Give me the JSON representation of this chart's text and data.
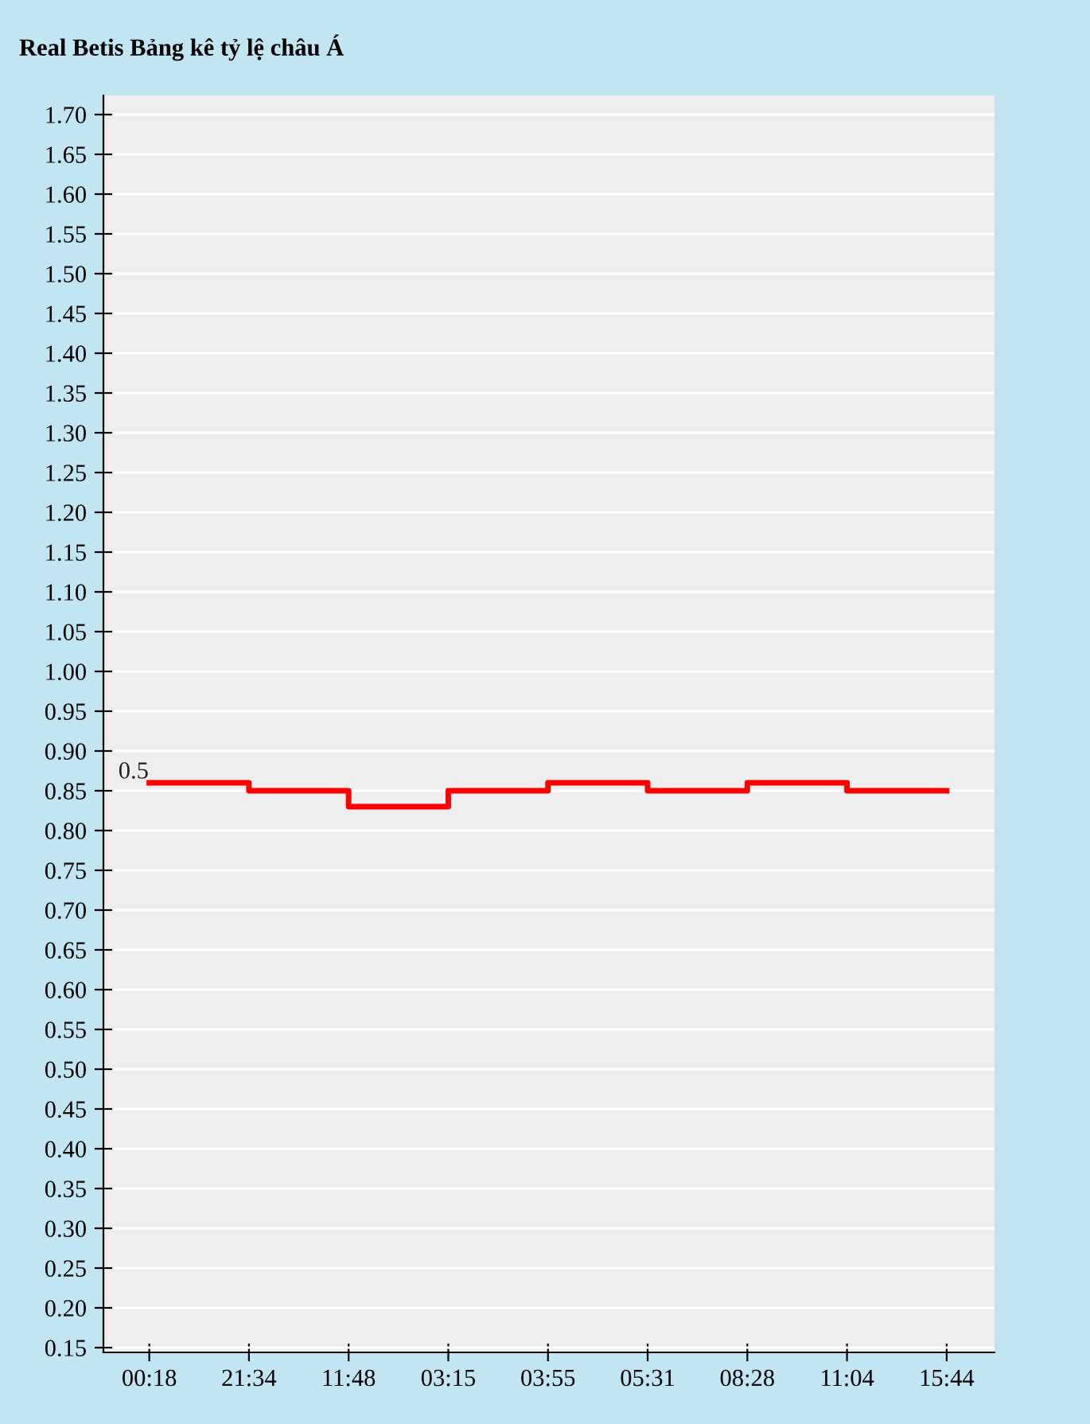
{
  "chart_data": {
    "type": "step",
    "title": "Real Betis Bảng kê tỷ lệ châu Á",
    "categories": [
      "00:18",
      "21:34",
      "11:48",
      "03:15",
      "03:55",
      "05:31",
      "08:28",
      "11:04",
      "15:44"
    ],
    "series": [
      {
        "color": "#ff0000",
        "values": [
          0.86,
          0.85,
          0.83,
          0.85,
          0.86,
          0.85,
          0.86,
          0.85,
          0.85
        ]
      }
    ],
    "ylim": [
      0.144,
      1.724
    ],
    "yticks": [
      {
        "value": 0.15,
        "label": "0.15"
      },
      {
        "value": 0.2,
        "label": "0.20"
      },
      {
        "value": 0.25,
        "label": "0.25"
      },
      {
        "value": 0.3,
        "label": "0.30"
      },
      {
        "value": 0.35,
        "label": "0.35"
      },
      {
        "value": 0.4,
        "label": "0.40"
      },
      {
        "value": 0.45,
        "label": "0.45"
      },
      {
        "value": 0.5,
        "label": "0.50"
      },
      {
        "value": 0.55,
        "label": "0.55"
      },
      {
        "value": 0.6,
        "label": "0.60"
      },
      {
        "value": 0.65,
        "label": "0.65"
      },
      {
        "value": 0.7,
        "label": "0.70"
      },
      {
        "value": 0.75,
        "label": "0.75"
      },
      {
        "value": 0.8,
        "label": "0.80"
      },
      {
        "value": 0.85,
        "label": "0.85"
      },
      {
        "value": 0.9,
        "label": "0.90"
      },
      {
        "value": 0.95,
        "label": "0.95"
      },
      {
        "value": 1.0,
        "label": "1.00"
      },
      {
        "value": 1.05,
        "label": "1.05"
      },
      {
        "value": 1.1,
        "label": "1.10"
      },
      {
        "value": 1.15,
        "label": "1.15"
      },
      {
        "value": 1.2,
        "label": "1.20"
      },
      {
        "value": 1.25,
        "label": "1.25"
      },
      {
        "value": 1.3,
        "label": "1.30"
      },
      {
        "value": 1.35,
        "label": "1.35"
      },
      {
        "value": 1.4,
        "label": "1.40"
      },
      {
        "value": 1.45,
        "label": "1.45"
      },
      {
        "value": 1.5,
        "label": "1.50"
      },
      {
        "value": 1.55,
        "label": "1.55"
      },
      {
        "value": 1.6,
        "label": "1.60"
      },
      {
        "value": 1.65,
        "label": "1.65"
      },
      {
        "value": 1.7,
        "label": "1.70"
      }
    ],
    "grid": "y",
    "annotations": [
      {
        "text": "0.5",
        "x": "00:18",
        "y": 0.86
      }
    ]
  }
}
